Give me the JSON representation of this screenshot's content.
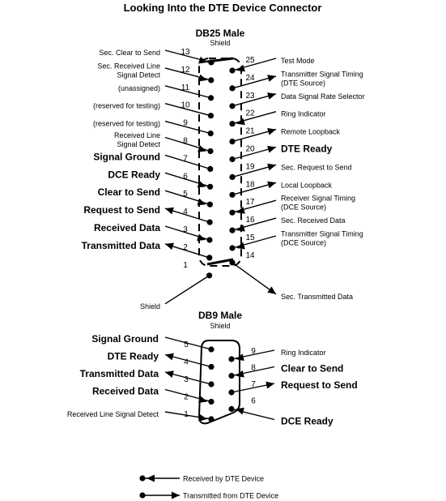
{
  "title": "Looking Into the DTE Device Connector",
  "db25": {
    "heading": "DB25 Male",
    "shield_label": "Shield",
    "pins": [
      {
        "num": "1",
        "label": [
          "Shield"
        ],
        "dir": "none",
        "bold": false
      },
      {
        "num": "2",
        "label": [
          "Transmitted Data"
        ],
        "dir": "out",
        "bold": true
      },
      {
        "num": "3",
        "label": [
          "Received Data"
        ],
        "dir": "in",
        "bold": true
      },
      {
        "num": "4",
        "label": [
          "Request to Send"
        ],
        "dir": "out",
        "bold": true
      },
      {
        "num": "5",
        "label": [
          "Clear to Send"
        ],
        "dir": "in",
        "bold": true
      },
      {
        "num": "6",
        "label": [
          "DCE Ready"
        ],
        "dir": "in",
        "bold": true
      },
      {
        "num": "7",
        "label": [
          "Signal Ground"
        ],
        "dir": "none",
        "bold": true
      },
      {
        "num": "8",
        "label": [
          "Received Line",
          "Signal Detect"
        ],
        "dir": "in",
        "bold": false
      },
      {
        "num": "9",
        "label": [
          "(reserved for testing)"
        ],
        "dir": "none",
        "bold": false
      },
      {
        "num": "10",
        "label": [
          "(reserved for testing)"
        ],
        "dir": "none",
        "bold": false
      },
      {
        "num": "11",
        "label": [
          "(unassigned)"
        ],
        "dir": "none",
        "bold": false
      },
      {
        "num": "12",
        "label": [
          "Sec. Received Line",
          "Signal Detect"
        ],
        "dir": "in",
        "bold": false
      },
      {
        "num": "13",
        "label": [
          "Sec. Clear to Send"
        ],
        "dir": "in",
        "bold": false
      },
      {
        "num": "14",
        "label": [
          "Sec. Transmitted Data"
        ],
        "dir": "out",
        "bold": false
      },
      {
        "num": "15",
        "label": [
          "Transmitter Signal Timing",
          "(DCE Source)"
        ],
        "dir": "in",
        "bold": false
      },
      {
        "num": "16",
        "label": [
          "Sec. Received Data"
        ],
        "dir": "in",
        "bold": false
      },
      {
        "num": "17",
        "label": [
          "Receiver Signal Timing",
          "(DCE Source)"
        ],
        "dir": "in",
        "bold": false
      },
      {
        "num": "18",
        "label": [
          "Local Loopback"
        ],
        "dir": "out",
        "bold": false
      },
      {
        "num": "19",
        "label": [
          "Sec. Request to Send"
        ],
        "dir": "out",
        "bold": false
      },
      {
        "num": "20",
        "label": [
          "DTE Ready"
        ],
        "dir": "out",
        "bold": true
      },
      {
        "num": "21",
        "label": [
          "Remote Loopback"
        ],
        "dir": "out",
        "bold": false
      },
      {
        "num": "22",
        "label": [
          "Ring Indicator"
        ],
        "dir": "in",
        "bold": false
      },
      {
        "num": "23",
        "label": [
          "Data Signal Rate Selector"
        ],
        "dir": "out",
        "bold": false
      },
      {
        "num": "24",
        "label": [
          "Transmitter Signal Timing",
          "(DTE Source)"
        ],
        "dir": "out",
        "bold": false
      },
      {
        "num": "25",
        "label": [
          "Test Mode"
        ],
        "dir": "in",
        "bold": false
      }
    ]
  },
  "db9": {
    "heading": "DB9 Male",
    "shield_label": "Shield",
    "pins": [
      {
        "num": "1",
        "label": [
          "Received Line Signal Detect"
        ],
        "dir": "in",
        "bold": false
      },
      {
        "num": "2",
        "label": [
          "Received Data"
        ],
        "dir": "in",
        "bold": true
      },
      {
        "num": "3",
        "label": [
          "Transmitted Data"
        ],
        "dir": "out",
        "bold": true
      },
      {
        "num": "4",
        "label": [
          "DTE Ready"
        ],
        "dir": "out",
        "bold": true
      },
      {
        "num": "5",
        "label": [
          "Signal Ground"
        ],
        "dir": "none",
        "bold": true
      },
      {
        "num": "6",
        "label": [
          "DCE Ready"
        ],
        "dir": "in",
        "bold": true
      },
      {
        "num": "7",
        "label": [
          "Request to Send"
        ],
        "dir": "out",
        "bold": true
      },
      {
        "num": "8",
        "label": [
          "Clear to Send"
        ],
        "dir": "in",
        "bold": true
      },
      {
        "num": "9",
        "label": [
          "Ring Indicator"
        ],
        "dir": "in",
        "bold": false
      }
    ]
  },
  "legend": [
    {
      "label": "Received by DTE Device",
      "dir": "in"
    },
    {
      "label": "Transmitted from DTE Device",
      "dir": "out"
    }
  ]
}
